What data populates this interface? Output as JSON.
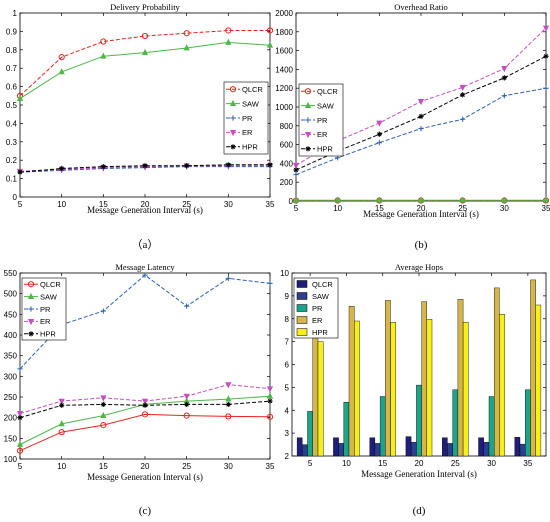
{
  "chart_data": [
    {
      "type": "line",
      "title": "Delivery Probability",
      "xlabel": "Message Generation Interval (s)",
      "ylabel": "",
      "caption": "（a）",
      "x": [
        5,
        10,
        15,
        20,
        25,
        30,
        35
      ],
      "xlim": [
        5,
        35
      ],
      "ylim": [
        0,
        1
      ],
      "yticks": [
        "0",
        "0.1",
        "0.2",
        "0.3",
        "0.4",
        "0.5",
        "0.6",
        "0.7",
        "0.8",
        "0.9",
        "1"
      ],
      "legend": "right",
      "series": [
        {
          "name": "QLCR",
          "color": "#e8231f",
          "dash": "4,2",
          "marker": "circle",
          "values": [
            0.55,
            0.76,
            0.845,
            0.875,
            0.89,
            0.905,
            0.905
          ]
        },
        {
          "name": "SAW",
          "color": "#4db848",
          "dash": "",
          "marker": "triangle",
          "values": [
            0.535,
            0.68,
            0.765,
            0.785,
            0.81,
            0.84,
            0.825
          ]
        },
        {
          "name": "PR",
          "color": "#2b5fb0",
          "dash": "4,2",
          "marker": "plus",
          "values": [
            0.135,
            0.145,
            0.155,
            0.16,
            0.165,
            0.165,
            0.165
          ]
        },
        {
          "name": "ER",
          "color": "#c44fc0",
          "dash": "4,2",
          "marker": "vtri",
          "values": [
            0.14,
            0.15,
            0.16,
            0.165,
            0.17,
            0.17,
            0.17
          ]
        },
        {
          "name": "HPR",
          "color": "#000000",
          "dash": "4,2",
          "marker": "star",
          "values": [
            0.135,
            0.155,
            0.165,
            0.17,
            0.17,
            0.175,
            0.175
          ]
        }
      ]
    },
    {
      "type": "line",
      "title": "Overhead Ratio",
      "xlabel": "Message Generation Interval (s)",
      "ylabel": "",
      "caption": "(b)",
      "x": [
        5,
        10,
        15,
        20,
        25,
        30,
        35
      ],
      "xlim": [
        5,
        35
      ],
      "ylim": [
        0,
        2000
      ],
      "yticks": [
        "0",
        "200",
        "400",
        "600",
        "800",
        "1000",
        "1200",
        "1400",
        "1600",
        "1800",
        "2000"
      ],
      "legend": "left",
      "series": [
        {
          "name": "QLCR",
          "color": "#e8231f",
          "dash": "4,2",
          "marker": "circle",
          "values": [
            5,
            5,
            5,
            5,
            5,
            5,
            5
          ]
        },
        {
          "name": "SAW",
          "color": "#4db848",
          "dash": "",
          "marker": "triangle",
          "values": [
            8,
            8,
            8,
            8,
            8,
            8,
            8
          ]
        },
        {
          "name": "PR",
          "color": "#2b5fb0",
          "dash": "4,2",
          "marker": "plus",
          "values": [
            280,
            460,
            620,
            770,
            870,
            1120,
            1200
          ]
        },
        {
          "name": "ER",
          "color": "#c44fc0",
          "dash": "4,2",
          "marker": "vtri",
          "values": [
            380,
            640,
            830,
            1060,
            1210,
            1410,
            1840
          ]
        },
        {
          "name": "HPR",
          "color": "#000000",
          "dash": "4,2",
          "marker": "star",
          "values": [
            330,
            530,
            710,
            900,
            1130,
            1310,
            1540
          ]
        }
      ]
    },
    {
      "type": "line",
      "title": "Message Latency",
      "xlabel": "Message Generation Interval (s)",
      "ylabel": "",
      "caption": "(c)",
      "x": [
        5,
        10,
        15,
        20,
        25,
        30,
        35
      ],
      "xlim": [
        5,
        35
      ],
      "ylim": [
        100,
        550
      ],
      "yticks": [
        "100",
        "150",
        "200",
        "250",
        "300",
        "350",
        "400",
        "450",
        "500",
        "550"
      ],
      "legend": "top-left",
      "series": [
        {
          "name": "QLCR",
          "color": "#e8231f",
          "dash": "",
          "marker": "circle",
          "values": [
            120,
            165,
            182,
            208,
            205,
            203,
            202
          ]
        },
        {
          "name": "SAW",
          "color": "#4db848",
          "dash": "",
          "marker": "triangle",
          "values": [
            135,
            185,
            205,
            232,
            240,
            245,
            252
          ]
        },
        {
          "name": "PR",
          "color": "#2b5fb0",
          "dash": "4,2",
          "marker": "plus",
          "values": [
            318,
            425,
            458,
            545,
            470,
            537,
            525
          ]
        },
        {
          "name": "ER",
          "color": "#c44fc0",
          "dash": "4,2",
          "marker": "vtri",
          "values": [
            210,
            240,
            248,
            240,
            252,
            280,
            270
          ]
        },
        {
          "name": "HPR",
          "color": "#000000",
          "dash": "4,2",
          "marker": "star",
          "values": [
            200,
            230,
            232,
            230,
            232,
            232,
            240
          ]
        }
      ]
    },
    {
      "type": "bar",
      "title": "Average Hops",
      "xlabel": "Message Generation Interval (s)",
      "ylabel": "",
      "caption": "(d)",
      "categories": [
        "5",
        "10",
        "15",
        "20",
        "25",
        "30",
        "35"
      ],
      "ylim": [
        2,
        10
      ],
      "yticks": [
        "2",
        "3",
        "4",
        "5",
        "6",
        "7",
        "8",
        "9",
        "10"
      ],
      "legend": "top-left",
      "series": [
        {
          "name": "QLCR",
          "color": "#1f1f7a",
          "values": [
            2.8,
            2.8,
            2.8,
            2.85,
            2.8,
            2.8,
            2.82
          ]
        },
        {
          "name": "SAW",
          "color": "#2a3f8f",
          "values": [
            2.5,
            2.55,
            2.55,
            2.6,
            2.55,
            2.6,
            2.52
          ]
        },
        {
          "name": "PR",
          "color": "#1aa58a",
          "values": [
            3.95,
            4.35,
            4.6,
            5.1,
            4.9,
            4.6,
            4.9
          ]
        },
        {
          "name": "ER",
          "color": "#d6b64a",
          "values": [
            7.6,
            8.55,
            8.8,
            8.75,
            8.85,
            9.35,
            9.7
          ]
        },
        {
          "name": "HPR",
          "color": "#f5ef1a",
          "values": [
            7.0,
            7.9,
            7.85,
            7.98,
            7.85,
            8.2,
            8.6
          ]
        }
      ]
    }
  ]
}
